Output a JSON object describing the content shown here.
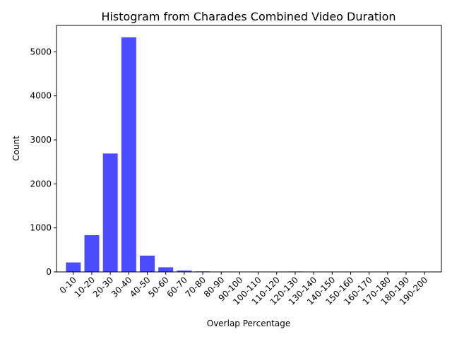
{
  "chart_data": {
    "type": "bar",
    "title": "Histogram from Charades Combined Video Duration",
    "xlabel": "Overlap Percentage",
    "ylabel": "Count",
    "categories": [
      "0-10",
      "10-20",
      "20-30",
      "30-40",
      "40-50",
      "50-60",
      "60-70",
      "70-80",
      "80-90",
      "90-100",
      "100-110",
      "110-120",
      "120-130",
      "130-140",
      "140-150",
      "150-160",
      "160-170",
      "170-180",
      "180-190",
      "190-200"
    ],
    "values": [
      215,
      835,
      2690,
      5330,
      370,
      105,
      30,
      12,
      3,
      2,
      1,
      1,
      10,
      1,
      1,
      0,
      0,
      0,
      0,
      0
    ],
    "yticks": [
      0,
      1000,
      2000,
      3000,
      4000,
      5000
    ],
    "ylim": [
      0,
      5600
    ],
    "bar_color": "#0000ff",
    "grid": false,
    "legend": "none"
  }
}
